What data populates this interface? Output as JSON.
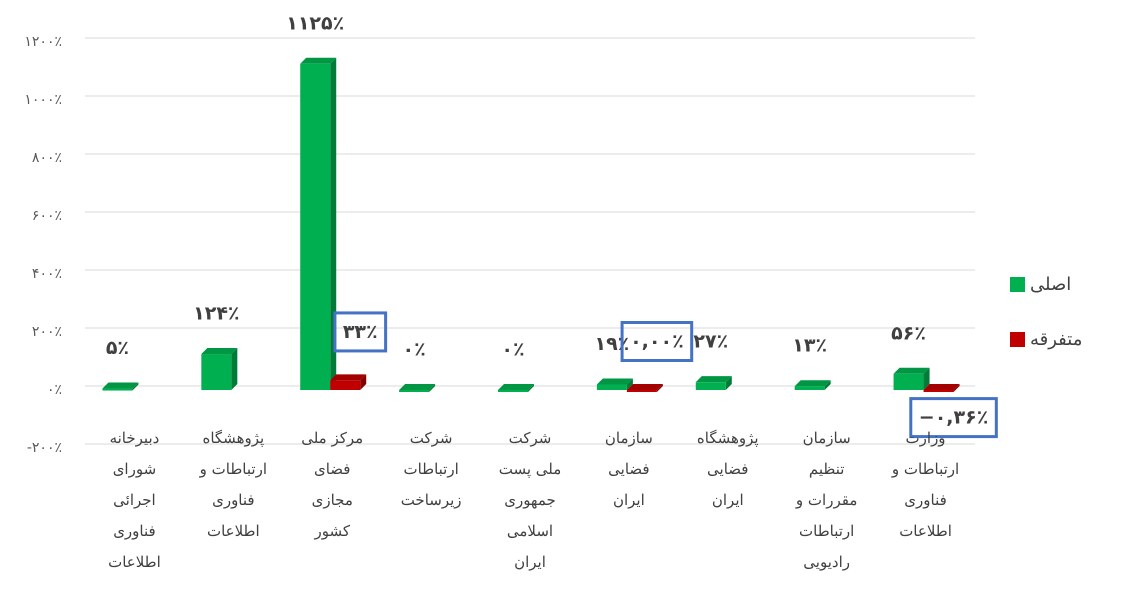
{
  "chart_data": {
    "type": "bar",
    "categories": [
      "دبیرخانه\nشورای\nاجرائی\nفناوری\nاطلاعات",
      "پژوهشگاه\nارتباطات و\nفناوری\nاطلاعات",
      "مرکز ملی\nفضای\nمجازی\nکشور",
      "شرکت\nارتباطات\nزیرساخت",
      "شرکت\nملی پست\nجمهوری\nاسلامی\nایران",
      "سازمان\nفضایی\nایران",
      "پژوهشگاه\nفضایی\nایران",
      "سازمان\nتنظیم\nمقررات و\nارتباطات\nرادیویی",
      "وزارت\nارتباطات و\nفناوری\nاطلاعات"
    ],
    "series": [
      {
        "name": "اصلی",
        "color": "#00b050",
        "values": [
          5,
          124,
          1125,
          0,
          0,
          19,
          27,
          13,
          56
        ],
        "value_labels": [
          "۵٪",
          "۱۲۴٪",
          "۱۱۲۵٪",
          "۰٪",
          "۰٪",
          "۱۹٪",
          "۲۷٪",
          "۱۳٪",
          "۵۶٪"
        ]
      },
      {
        "name": "متفرقه",
        "color": "#c00000",
        "values": [
          null,
          null,
          33,
          null,
          null,
          0,
          null,
          null,
          -0.36
        ],
        "value_labels": [
          null,
          null,
          "۳۳٪",
          null,
          null,
          "۰,۰۰٪",
          null,
          null,
          "−۰,۳۶٪"
        ]
      }
    ],
    "ylim": [
      -200,
      1200
    ],
    "yticks": [
      {
        "value": -200,
        "label": "-۲۰۰٪"
      },
      {
        "value": 0,
        "label": "۰٪"
      },
      {
        "value": 200,
        "label": "۲۰۰٪"
      },
      {
        "value": 400,
        "label": "۴۰۰٪"
      },
      {
        "value": 600,
        "label": "۶۰۰٪"
      },
      {
        "value": 800,
        "label": "۸۰۰٪"
      },
      {
        "value": 1000,
        "label": "۱۰۰۰٪"
      },
      {
        "value": 1200,
        "label": "۱۲۰۰٪"
      }
    ],
    "grid": true,
    "legend": "right"
  }
}
